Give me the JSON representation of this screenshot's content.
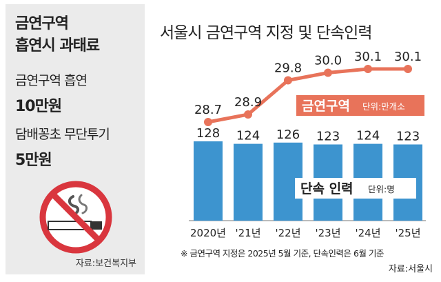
{
  "left_panel": {
    "title_line1": "금연구역",
    "title_line2": "흡연시 과태료",
    "item1_label": "금연구역 흡연",
    "item1_value": "10만원",
    "item2_label": "담배꽁초 무단투기",
    "item2_value": "5만원",
    "source": "자료:보건복지부",
    "icon": "no-smoking-icon"
  },
  "chart_data": {
    "type": "bar+line",
    "title": "서울시 금연구역 지정 및 단속인력",
    "categories": [
      "2020년",
      "'21년",
      "'22년",
      "'23년",
      "'24년",
      "'25년"
    ],
    "series": [
      {
        "name": "금연구역",
        "unit": "단위:만개소",
        "type": "line",
        "values": [
          28.7,
          28.9,
          29.8,
          30.0,
          30.1,
          30.1
        ],
        "labels": [
          "28.7",
          "28.9",
          "29.8",
          "30.0",
          "30.1",
          "30.1"
        ]
      },
      {
        "name": "단속 인력",
        "unit": "단위:명",
        "type": "bar",
        "values": [
          128,
          124,
          126,
          123,
          124,
          123
        ],
        "labels": [
          "128",
          "124",
          "126",
          "123",
          "124",
          "123"
        ]
      }
    ],
    "footnote": "※ 금연구역 지정은 2025년 5월 기준, 단속인력은 6월 기준",
    "source": "자료:서울시",
    "colors": {
      "bar": "#3d94cf",
      "line": "#e8735a",
      "label_bg": "#e8735a"
    }
  }
}
